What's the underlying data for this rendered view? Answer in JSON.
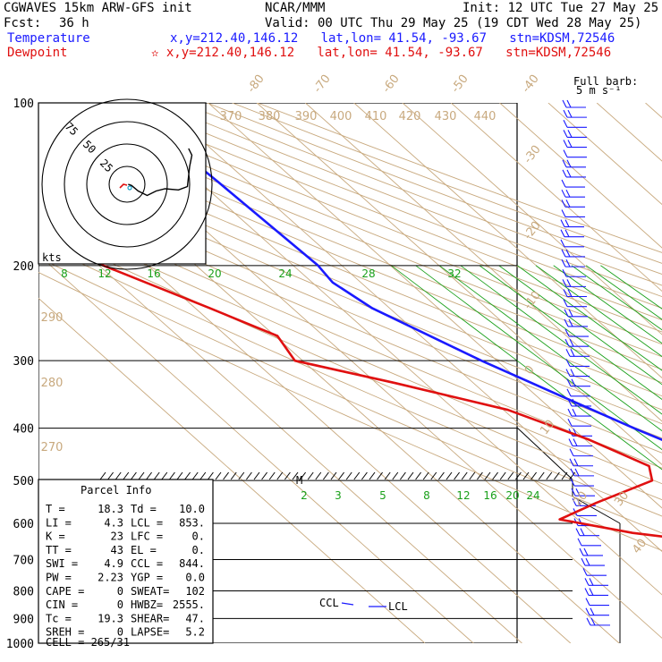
{
  "header": {
    "model_line": "CGWAVES 15km ARW-GFS init",
    "org": "NCAR/MMM",
    "init": "Init: 12 UTC Tue 27 May 25",
    "fcst_label": "Fcst:",
    "fcst_value": "36 h",
    "valid": "Valid: 00 UTC Thu 29 May 25 (19 CDT Wed 28 May 25)",
    "temperature_label": "Temperature",
    "temperature_loc": "x,y=212.40,146.12   lat,lon= 41.54, -93.67   stn=KDSM,72546",
    "dewpoint_label": "Dewpoint",
    "dewpoint_loc": "✫ x,y=212.40,146.12   lat,lon= 41.54, -93.67   stn=KDSM,72546"
  },
  "barb_key": {
    "line1": "Full barb:",
    "line2": "5 m s⁻¹"
  },
  "hodograph": {
    "ring_labels": [
      "75",
      "50",
      "25"
    ],
    "units": "kts"
  },
  "parcel_info": {
    "title": "Parcel Info",
    "rows": [
      [
        "T  =",
        "18.3",
        "Td =",
        "10.0"
      ],
      [
        "LI =",
        "4.3",
        "LCL =",
        "853."
      ],
      [
        "K  =",
        "23",
        "LFC =",
        "0."
      ],
      [
        "TT =",
        "43",
        "EL  =",
        "0."
      ],
      [
        "SWI =",
        "4.9",
        "CCL =",
        "844."
      ],
      [
        "PW =",
        "2.23",
        "YGP =",
        "0.0"
      ],
      [
        "CAPE =",
        "0",
        "SWEAT=",
        "102"
      ],
      [
        "CIN  =",
        "0",
        "HWBZ=",
        "2555."
      ],
      [
        "Tc   =",
        "19.3",
        "SHEAR=",
        "47."
      ],
      [
        "SREH =",
        "0",
        "LAPSE=",
        "5.2"
      ]
    ],
    "cell": "CELL = 265/31"
  },
  "labels": {
    "ccl": "CCL",
    "lcl": "LCL",
    "m": "M"
  },
  "chart_data": {
    "type": "line",
    "title": "",
    "xlabel": "",
    "ylabel": "",
    "y_axis": "pressure (hPa), log scale",
    "y_ticks": [
      "100",
      "200",
      "300",
      "400",
      "500",
      "600",
      "700",
      "800",
      "900",
      "1000"
    ],
    "y_tick_values": [
      100,
      200,
      300,
      400,
      500,
      600,
      700,
      800,
      900,
      1000
    ],
    "isotherm_labels": [
      "-80",
      "-70",
      "-60",
      "-50",
      "-40",
      "-30",
      "-20",
      "-10",
      "0",
      "10",
      "20",
      "30",
      "40"
    ],
    "dry_adiabat_labels": [
      "370",
      "380",
      "390",
      "400",
      "410",
      "420",
      "430",
      "440",
      "290",
      "280",
      "270"
    ],
    "mixing_ratio_labels_upper": [
      "8",
      "12",
      "16",
      "20",
      "24",
      "28",
      "32"
    ],
    "mixing_ratio_labels_lower": [
      "2",
      "3",
      "5",
      "8",
      "12",
      "16",
      "20",
      "24"
    ],
    "series": [
      {
        "name": "Temperature",
        "color": "#1a1aff",
        "points": [
          [
            100,
            -58.0
          ],
          [
            140,
            -56.2
          ],
          [
            200,
            -54.9
          ],
          [
            215,
            -55.8
          ],
          [
            240,
            -53.6
          ],
          [
            300,
            -43.2
          ],
          [
            350,
            -34.8
          ],
          [
            400,
            -27.4
          ],
          [
            450,
            -20.0
          ],
          [
            500,
            -14.8
          ],
          [
            550,
            -8.9
          ],
          [
            600,
            -6.5
          ],
          [
            650,
            -1.8
          ],
          [
            700,
            2.9
          ],
          [
            750,
            6.6
          ],
          [
            800,
            11.9
          ],
          [
            850,
            14.3
          ],
          [
            900,
            16.1
          ],
          [
            950,
            17.2
          ],
          [
            970,
            18.3
          ]
        ]
      },
      {
        "name": "Dewpoint",
        "color": "#e01010",
        "points": [
          [
            100,
            -97.7
          ],
          [
            113,
            -114.4
          ],
          [
            130,
            -125.8
          ],
          [
            150,
            -115.7
          ],
          [
            170,
            -108.6
          ],
          [
            200,
            -99.1
          ],
          [
            240,
            -87.0
          ],
          [
            270,
            -79.5
          ],
          [
            300,
            -81.6
          ],
          [
            330,
            -66.1
          ],
          [
            370,
            -49.1
          ],
          [
            420,
            -39.3
          ],
          [
            470,
            -33.0
          ],
          [
            500,
            -35.7
          ],
          [
            550,
            -52.4
          ],
          [
            590,
            -63.7
          ],
          [
            625,
            -51.8
          ],
          [
            670,
            -28.2
          ],
          [
            720,
            -8.2
          ],
          [
            760,
            2.8
          ],
          [
            800,
            9.1
          ],
          [
            850,
            10.7
          ],
          [
            900,
            10.5
          ],
          [
            950,
            10.2
          ],
          [
            980,
            10.0
          ]
        ]
      }
    ],
    "parcel_trace": {
      "name": "",
      "color": "#1a1aff",
      "points": [
        [
          965,
          18.3
        ],
        [
          890,
          12.0
        ],
        [
          853,
          8.9
        ],
        [
          830,
          8.2
        ],
        [
          800,
          7.4
        ]
      ]
    },
    "hodograph_trace": [
      [
        0.05,
        0.0
      ],
      [
        0.2,
        -0.05
      ],
      [
        0.5,
        -0.3
      ],
      [
        0.9,
        -0.5
      ],
      [
        1.3,
        -0.3
      ],
      [
        1.7,
        -0.2
      ],
      [
        2.3,
        -0.25
      ],
      [
        2.7,
        -0.1
      ],
      [
        2.8,
        0.8
      ],
      [
        2.9,
        1.3
      ],
      [
        2.75,
        1.6
      ]
    ]
  }
}
